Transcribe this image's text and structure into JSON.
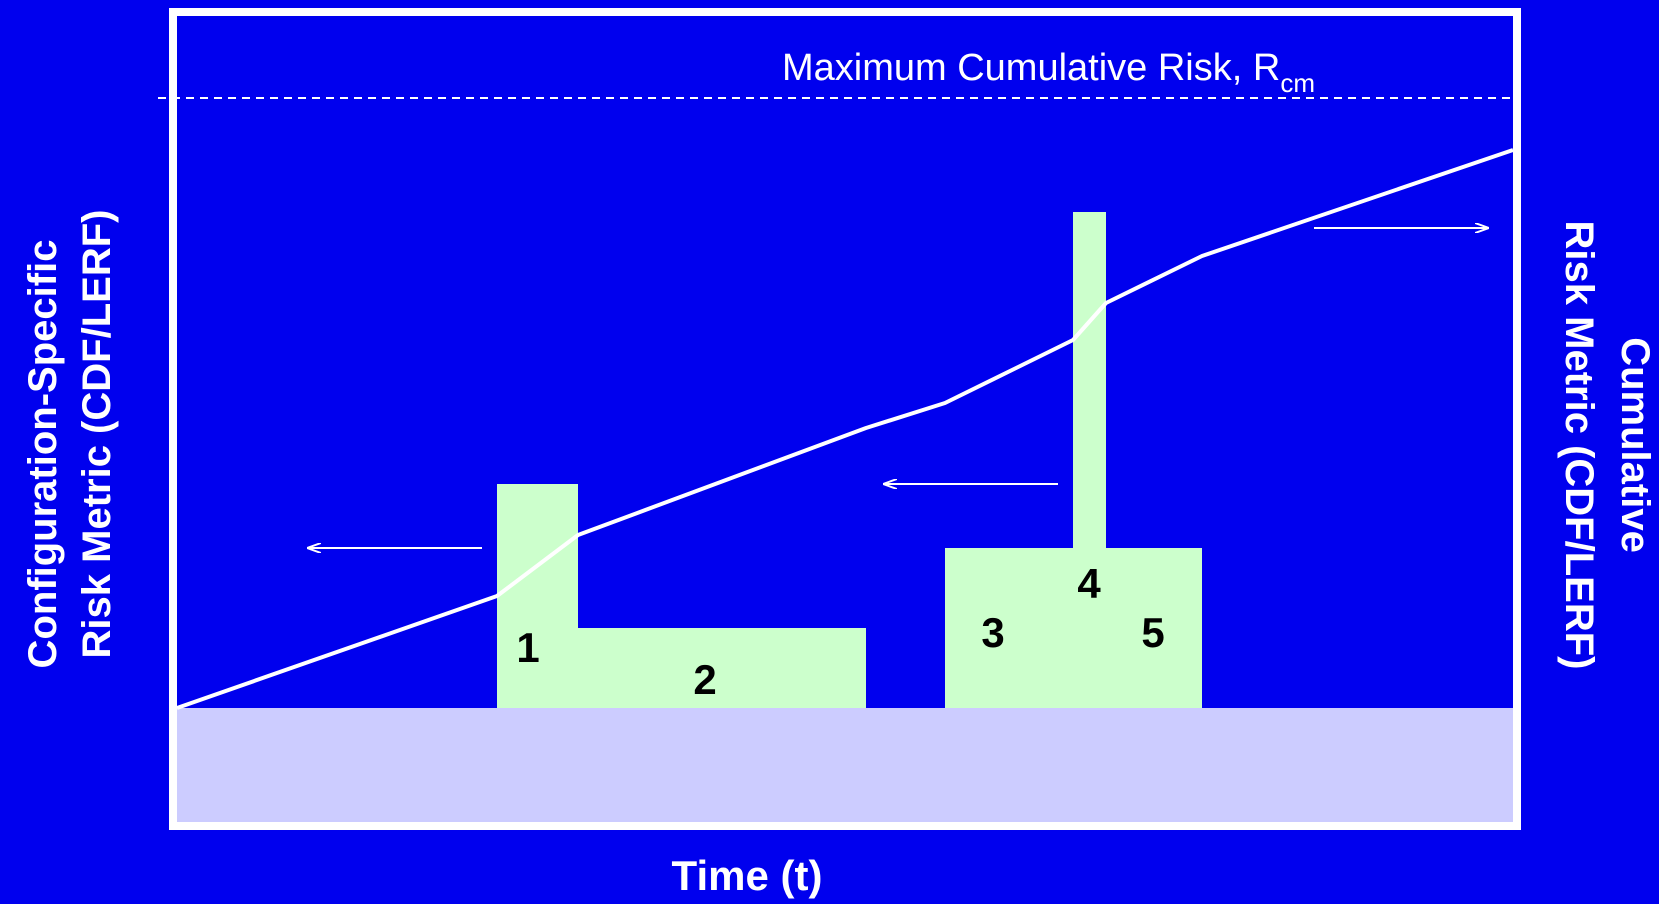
{
  "colors": {
    "background": "#0000ee",
    "frame": "#ffffff",
    "baseline_band": "#ccccff",
    "block_fill": "#ccffcc",
    "text": "#ffffff",
    "block_label": "#000000"
  },
  "threshold_label": "Maximum Cumulative Risk,  R",
  "threshold_subscript": "cm",
  "left_axis_label": {
    "line1": "Configuration-Specific",
    "line2": "Risk Metric (CDF/LERF)"
  },
  "right_axis_label": {
    "line1": "Cumulative",
    "line2": "Risk Metric (CDF/LERF)"
  },
  "x_axis_label": "Time (t)",
  "blocks": [
    {
      "label": "1"
    },
    {
      "label": "2"
    },
    {
      "label": "3"
    },
    {
      "label": "4"
    },
    {
      "label": "5"
    }
  ]
}
